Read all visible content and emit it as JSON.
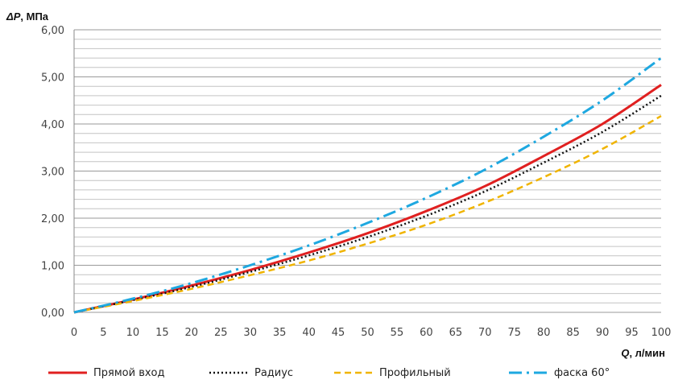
{
  "chart_data": {
    "type": "line",
    "ylabel_prefix": "ΔP",
    "ylabel_suffix": ", МПа",
    "xlabel_prefix": "Q",
    "xlabel_suffix": ", л/мин",
    "xlim": [
      0,
      100
    ],
    "ylim": [
      0,
      6
    ],
    "x_ticks": [
      0,
      5,
      10,
      15,
      20,
      25,
      30,
      35,
      40,
      45,
      50,
      55,
      60,
      65,
      70,
      75,
      80,
      85,
      90,
      95,
      100
    ],
    "y_ticks": [
      "0,00",
      "1,00",
      "2,00",
      "3,00",
      "4,00",
      "5,00",
      "6,00"
    ],
    "grid": "horizontal, minor every 0.2",
    "legend_position": "bottom",
    "x": [
      0,
      10,
      20,
      30,
      40,
      50,
      60,
      70,
      80,
      90,
      100
    ],
    "series": [
      {
        "name": "Прямой вход",
        "color": "#e02020",
        "style": "solid",
        "values": [
          0.0,
          0.27,
          0.57,
          0.9,
          1.27,
          1.68,
          2.15,
          2.68,
          3.32,
          4.0,
          4.83
        ]
      },
      {
        "name": "Радиус",
        "color": "#111111",
        "style": "dotted",
        "values": [
          0.0,
          0.26,
          0.54,
          0.86,
          1.21,
          1.6,
          2.05,
          2.57,
          3.18,
          3.83,
          4.6
        ]
      },
      {
        "name": "Профильный",
        "color": "#f0b400",
        "style": "dashed",
        "values": [
          0.0,
          0.24,
          0.5,
          0.79,
          1.1,
          1.46,
          1.86,
          2.33,
          2.87,
          3.47,
          4.17
        ]
      },
      {
        "name": "фаска 60°",
        "color": "#1ea8e0",
        "style": "dashdot",
        "values": [
          0.0,
          0.29,
          0.62,
          1.0,
          1.42,
          1.9,
          2.43,
          3.03,
          3.73,
          4.5,
          5.4
        ]
      }
    ]
  }
}
